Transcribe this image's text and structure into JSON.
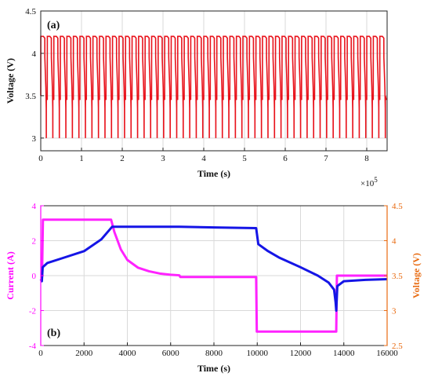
{
  "chart_data": [
    {
      "id": "a",
      "type": "line",
      "panel_label": "(a)",
      "xlabel": "Time (s)",
      "ylabel": "Voltage (V)",
      "xlim": [
        0,
        850000
      ],
      "ylim": [
        2.85,
        4.5
      ],
      "x_multiplier_text": "×10",
      "x_multiplier_exp": "5",
      "x_ticks": [
        0,
        100000,
        200000,
        300000,
        400000,
        500000,
        600000,
        700000,
        800000
      ],
      "x_tick_labels": [
        "0",
        "1",
        "2",
        "3",
        "4",
        "5",
        "6",
        "7",
        "8"
      ],
      "y_ticks": [
        3.0,
        3.5,
        4.0,
        4.5
      ],
      "y_tick_labels": [
        "3",
        "3.5",
        "4",
        "4.5"
      ],
      "grid": true,
      "series": [
        {
          "color": "#e8121b",
          "cycle_period": 16000,
          "cycle_count": 53,
          "cycle_profile": [
            [
              0,
              3.5
            ],
            [
              150,
              4.2
            ],
            [
              3300,
              4.2
            ],
            [
              6400,
              4.2
            ],
            [
              9950,
              4.18
            ],
            [
              10050,
              3.95
            ],
            [
              12500,
              3.6
            ],
            [
              13500,
              3.35
            ],
            [
              13650,
              3.0
            ],
            [
              13700,
              3.5
            ],
            [
              16000,
              3.45
            ]
          ]
        }
      ]
    },
    {
      "id": "b",
      "type": "line",
      "panel_label": "(b)",
      "xlabel": "Time (s)",
      "ylabel_left": "Current (A)",
      "ylabel_right": "Voltage (V)",
      "xlim": [
        0,
        16000
      ],
      "ylim_left": [
        -4,
        4
      ],
      "ylim_right": [
        2.5,
        4.5
      ],
      "x_ticks": [
        0,
        2000,
        4000,
        6000,
        8000,
        10000,
        12000,
        14000,
        16000
      ],
      "x_tick_labels": [
        "0",
        "2000",
        "4000",
        "6000",
        "8000",
        "10000",
        "12000",
        "14000",
        "16000"
      ],
      "y_left_ticks": [
        -4,
        -2,
        0,
        2,
        4
      ],
      "y_left_tick_labels": [
        "-4",
        "-2",
        "0",
        "2",
        "4"
      ],
      "y_right_ticks": [
        2.5,
        3.0,
        3.5,
        4.0,
        4.5
      ],
      "y_right_tick_labels": [
        "2.5",
        "3",
        "3.5",
        "4",
        "4.5"
      ],
      "left_axis_color": "#ff00ff",
      "right_axis_color": "#e86a10",
      "grid": true,
      "series": [
        {
          "axis": "left",
          "color": "#ff22ff",
          "points": [
            [
              0,
              0
            ],
            [
              60,
              0
            ],
            [
              100,
              3.2
            ],
            [
              3250,
              3.2
            ],
            [
              3400,
              2.5
            ],
            [
              3700,
              1.5
            ],
            [
              4000,
              0.9
            ],
            [
              4500,
              0.45
            ],
            [
              5000,
              0.25
            ],
            [
              5500,
              0.12
            ],
            [
              6000,
              0.05
            ],
            [
              6400,
              0.02
            ],
            [
              6450,
              -0.08
            ],
            [
              9950,
              -0.08
            ],
            [
              9980,
              -3.2
            ],
            [
              13650,
              -3.2
            ],
            [
              13680,
              0.0
            ],
            [
              16000,
              0.0
            ]
          ]
        },
        {
          "axis": "right",
          "color": "#1515e6",
          "points": [
            [
              0,
              3.45
            ],
            [
              50,
              3.42
            ],
            [
              90,
              3.62
            ],
            [
              300,
              3.68
            ],
            [
              1000,
              3.75
            ],
            [
              2000,
              3.85
            ],
            [
              2800,
              4.02
            ],
            [
              3300,
              4.2
            ],
            [
              4000,
              4.2
            ],
            [
              6400,
              4.2
            ],
            [
              8000,
              4.19
            ],
            [
              9950,
              4.18
            ],
            [
              10050,
              3.95
            ],
            [
              10500,
              3.85
            ],
            [
              11000,
              3.76
            ],
            [
              12000,
              3.62
            ],
            [
              12800,
              3.5
            ],
            [
              13300,
              3.4
            ],
            [
              13550,
              3.3
            ],
            [
              13620,
              3.12
            ],
            [
              13650,
              3.0
            ],
            [
              13700,
              3.35
            ],
            [
              14000,
              3.42
            ],
            [
              15000,
              3.44
            ],
            [
              16000,
              3.45
            ]
          ]
        }
      ]
    }
  ]
}
